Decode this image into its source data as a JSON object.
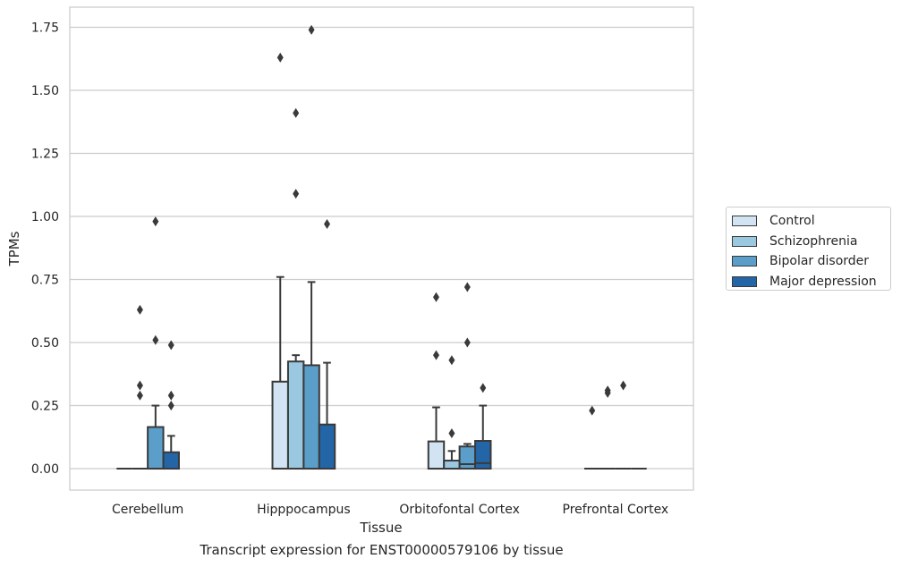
{
  "chart_data": {
    "type": "box",
    "xlabel": "Tissue",
    "ylabel": "TPMs",
    "caption": "Transcript expression for ENST00000579106 by tissue",
    "ylim": [
      -0.085,
      1.83
    ],
    "yticks": [
      0.0,
      0.25,
      0.5,
      0.75,
      1.0,
      1.25,
      1.5,
      1.75
    ],
    "ytick_labels": [
      "0.00",
      "0.25",
      "0.50",
      "0.75",
      "1.00",
      "1.25",
      "1.50",
      "1.75"
    ],
    "grid": "horizontal",
    "legend_position": "outside-right",
    "categories": [
      "Cerebellum",
      "Hipppocampus",
      "Orbitofontal Cortex",
      "Prefrontal Cortex"
    ],
    "series": [
      {
        "name": "Control",
        "color": "#d2e3f3",
        "boxes": [
          {
            "q1": 0,
            "median": 0,
            "q3": 0,
            "whisker_low": 0,
            "whisker_high": 0,
            "outliers": []
          },
          {
            "q1": 0,
            "median": 0,
            "q3": 0.345,
            "whisker_low": 0,
            "whisker_high": 0.76,
            "outliers": [
              1.63
            ]
          },
          {
            "q1": 0,
            "median": 0,
            "q3": 0.108,
            "whisker_low": 0,
            "whisker_high": 0.243,
            "outliers": [
              0.45,
              0.68
            ]
          },
          {
            "q1": 0,
            "median": 0,
            "q3": 0,
            "whisker_low": 0,
            "whisker_high": 0,
            "outliers": [
              0.23
            ]
          }
        ]
      },
      {
        "name": "Schizophrenia",
        "color": "#9ac8e0",
        "boxes": [
          {
            "q1": 0,
            "median": 0,
            "q3": 0,
            "whisker_low": 0,
            "whisker_high": 0,
            "outliers": [
              0.29,
              0.33,
              0.63
            ]
          },
          {
            "q1": 0,
            "median": 0,
            "q3": 0.425,
            "whisker_low": 0,
            "whisker_high": 0.45,
            "outliers": [
              1.09,
              1.41
            ]
          },
          {
            "q1": 0,
            "median": 0,
            "q3": 0.032,
            "whisker_low": 0,
            "whisker_high": 0.07,
            "outliers": [
              0.14,
              0.43
            ]
          },
          {
            "q1": 0,
            "median": 0,
            "q3": 0,
            "whisker_low": 0,
            "whisker_high": 0,
            "outliers": [
              0.3,
              0.31
            ]
          }
        ]
      },
      {
        "name": "Bipolar disorder",
        "color": "#5a9ec9",
        "boxes": [
          {
            "q1": 0,
            "median": 0,
            "q3": 0.165,
            "whisker_low": 0,
            "whisker_high": 0.25,
            "outliers": [
              0.51,
              0.98
            ]
          },
          {
            "q1": 0,
            "median": 0,
            "q3": 0.41,
            "whisker_low": 0,
            "whisker_high": 0.74,
            "outliers": [
              1.74
            ]
          },
          {
            "q1": 0,
            "median": 0.018,
            "q3": 0.088,
            "whisker_low": 0,
            "whisker_high": 0.098,
            "outliers": [
              0.5,
              0.72
            ]
          },
          {
            "q1": 0,
            "median": 0,
            "q3": 0,
            "whisker_low": 0,
            "whisker_high": 0,
            "outliers": [
              0.33
            ]
          }
        ]
      },
      {
        "name": "Major depression",
        "color": "#2465a8",
        "boxes": [
          {
            "q1": 0,
            "median": 0,
            "q3": 0.065,
            "whisker_low": 0,
            "whisker_high": 0.13,
            "outliers": [
              0.25,
              0.29,
              0.49
            ]
          },
          {
            "q1": 0,
            "median": 0,
            "q3": 0.175,
            "whisker_low": 0,
            "whisker_high": 0.42,
            "outliers": [
              0.97
            ]
          },
          {
            "q1": 0,
            "median": 0.022,
            "q3": 0.11,
            "whisker_low": 0,
            "whisker_high": 0.25,
            "outliers": [
              0.32
            ]
          },
          {
            "q1": 0,
            "median": 0,
            "q3": 0,
            "whisker_low": 0,
            "whisker_high": 0,
            "outliers": []
          }
        ]
      }
    ]
  }
}
